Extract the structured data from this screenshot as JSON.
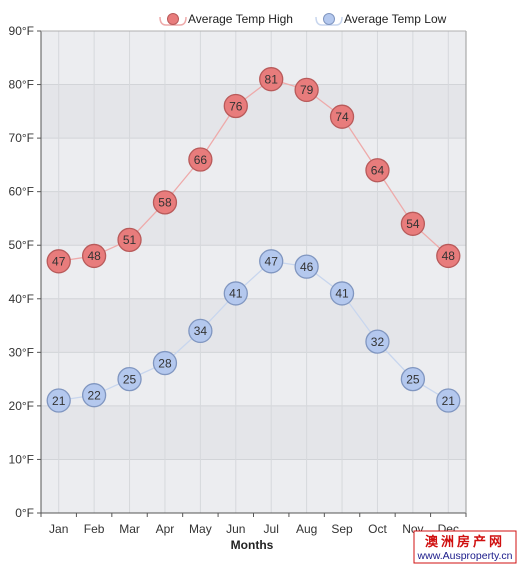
{
  "chart_data": {
    "type": "line",
    "categories": [
      "Jan",
      "Feb",
      "Mar",
      "Apr",
      "May",
      "Jun",
      "Jul",
      "Aug",
      "Sep",
      "Oct",
      "Nov",
      "Dec"
    ],
    "series": [
      {
        "name": "Average Temp High",
        "values": [
          47,
          48,
          51,
          58,
          66,
          76,
          81,
          79,
          74,
          64,
          54,
          48
        ],
        "color": "#e87c7c",
        "line_color": "#eeaaaa"
      },
      {
        "name": "Average Temp Low",
        "values": [
          21,
          22,
          25,
          28,
          34,
          41,
          47,
          46,
          41,
          32,
          25,
          21
        ],
        "color": "#b4c8ee",
        "line_color": "#c8d6ee"
      }
    ],
    "xlabel": "Months",
    "ylabel": "",
    "ylim": [
      0,
      90
    ],
    "yticks": [
      0,
      10,
      20,
      30,
      40,
      50,
      60,
      70,
      80,
      90
    ],
    "ytick_labels": [
      "0°F",
      "10°F",
      "20°F",
      "30°F",
      "40°F",
      "50°F",
      "60°F",
      "70°F",
      "80°F",
      "90°F"
    ],
    "grid": true,
    "legend_position": "top-right",
    "data_labels": true
  },
  "watermark": {
    "line1": "澳洲房产网",
    "line2": "www.Ausproperty.cn"
  }
}
